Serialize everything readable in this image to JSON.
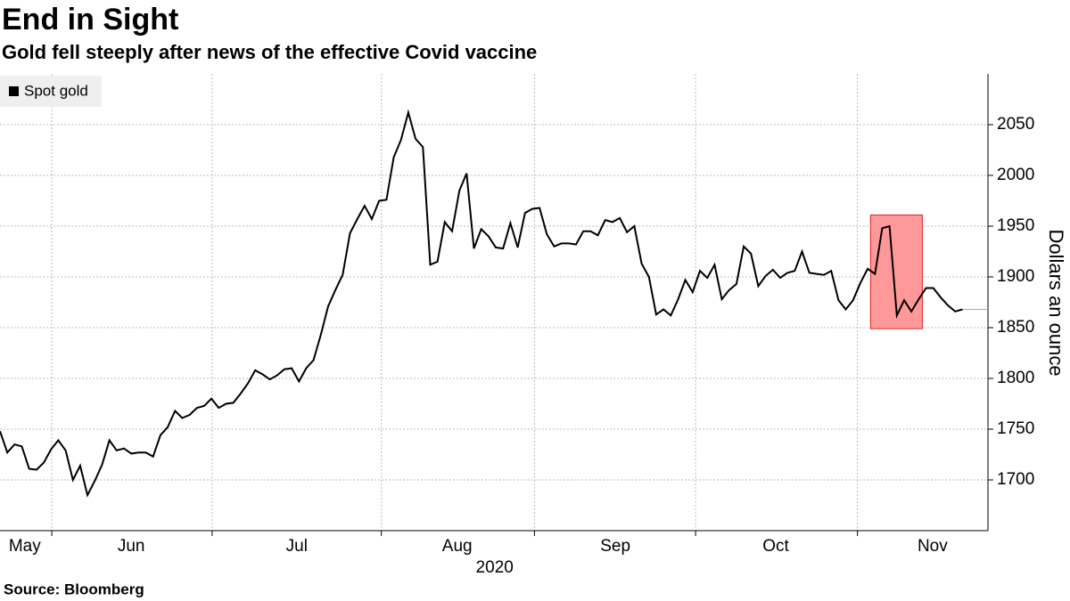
{
  "chart_data": {
    "type": "line",
    "title": "End in Sight",
    "subtitle": "Gold fell steeply after news of the effective Covid vaccine",
    "source": "Source:  Bloomberg",
    "ylabel": "Dollars an ounce",
    "xlabel": "2020",
    "series": [
      {
        "name": "Spot gold",
        "color": "#000000",
        "values": [
          1748,
          1727,
          1735,
          1733,
          1711,
          1710,
          1717,
          1730,
          1739,
          1729,
          1700,
          1714,
          1685,
          1699,
          1715,
          1739,
          1729,
          1731,
          1726,
          1727,
          1727,
          1723,
          1744,
          1752,
          1768,
          1761,
          1764,
          1771,
          1773,
          1780,
          1771,
          1775,
          1776,
          1785,
          1795,
          1808,
          1804,
          1799,
          1803,
          1809,
          1810,
          1797,
          1810,
          1818,
          1843,
          1871,
          1887,
          1902,
          1943,
          1957,
          1970,
          1957,
          1975,
          1976,
          2018,
          2035,
          2062,
          2036,
          2028,
          1912,
          1915,
          1954,
          1945,
          1985,
          2002,
          1928,
          1947,
          1940,
          1929,
          1928,
          1953,
          1929,
          1963,
          1967,
          1968,
          1942,
          1930,
          1933,
          1933,
          1932,
          1945,
          1945,
          1941,
          1956,
          1954,
          1958,
          1944,
          1950,
          1913,
          1900,
          1863,
          1868,
          1862,
          1878,
          1897,
          1885,
          1906,
          1899,
          1912,
          1878,
          1887,
          1893,
          1930,
          1923,
          1891,
          1901,
          1907,
          1899,
          1904,
          1906,
          1925,
          1904,
          1903,
          1902,
          1906,
          1877,
          1868,
          1877,
          1894,
          1908,
          1903,
          1948,
          1950,
          1862,
          1877,
          1866,
          1878,
          1889,
          1889,
          1880,
          1872,
          1866,
          1868
        ]
      }
    ],
    "last_value_color": "#e0a030",
    "xlim": [
      0,
      135.5
    ],
    "xticks": [
      {
        "value": 3.4,
        "label": "May"
      },
      {
        "value": 18,
        "label": "Jun"
      },
      {
        "value": 40.7,
        "label": "Jul"
      },
      {
        "value": 62.7,
        "label": "Aug"
      },
      {
        "value": 84.4,
        "label": "Sep"
      },
      {
        "value": 106.4,
        "label": "Oct"
      },
      {
        "value": 127.9,
        "label": "Nov"
      }
    ],
    "xgrid": [
      7.1,
      29.1,
      52.3,
      73.3,
      95.4,
      117.6
    ],
    "ylim": [
      1650,
      2100
    ],
    "yticks": [
      1700,
      1750,
      1800,
      1850,
      1900,
      1950,
      2000,
      2050
    ],
    "grid": true,
    "legend": "upper left",
    "highlight": {
      "x": [
        119.4,
        126.5
      ],
      "y": [
        1849,
        1961
      ],
      "color": "#ff9999"
    }
  }
}
